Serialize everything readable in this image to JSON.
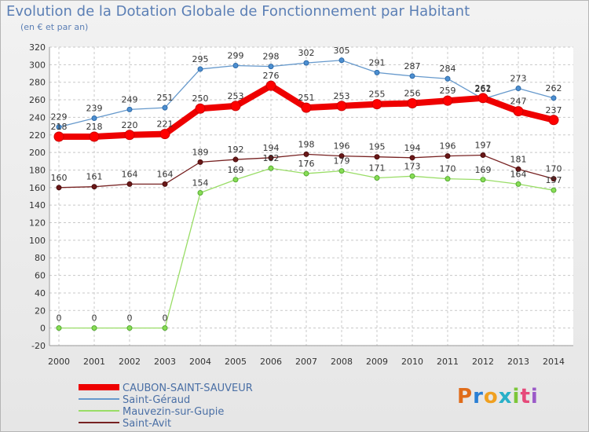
{
  "header": {
    "title": "Evolution de la Dotation Globale de Fonctionnement par Habitant",
    "subtitle": "(en € et par an)"
  },
  "logo": {
    "text": "Proxiti"
  },
  "chart_data": {
    "type": "line",
    "title": "Evolution de la Dotation Globale de Fonctionnement par Habitant",
    "subtitle": "(en € et par an)",
    "x": [
      2000,
      2001,
      2002,
      2003,
      2004,
      2005,
      2006,
      2007,
      2008,
      2009,
      2010,
      2011,
      2012,
      2013,
      2014
    ],
    "ylim": [
      -20,
      320
    ],
    "yticks": [
      -20,
      0,
      20,
      40,
      60,
      80,
      100,
      120,
      140,
      160,
      180,
      200,
      220,
      240,
      260,
      280,
      300,
      320
    ],
    "grid": true,
    "legend_position": "bottom-left",
    "series": [
      {
        "name": "CAUBON-SAINT-SAUVEUR",
        "color": "#ee0000",
        "values": [
          218,
          218,
          220,
          221,
          250,
          253,
          276,
          251,
          253,
          255,
          256,
          259,
          262,
          247,
          237
        ]
      },
      {
        "name": "Saint-Géraud",
        "color": "#6699cc",
        "values": [
          229,
          239,
          249,
          251,
          295,
          299,
          298,
          302,
          305,
          291,
          287,
          284,
          261,
          273,
          262
        ]
      },
      {
        "name": "Mauvezin-sur-Gupie",
        "color": "#99dd66",
        "values": [
          0,
          0,
          0,
          0,
          154,
          169,
          182,
          176,
          179,
          171,
          173,
          170,
          169,
          164,
          157
        ]
      },
      {
        "name": "Saint-Avit",
        "color": "#772222",
        "values": [
          160,
          161,
          164,
          164,
          189,
          192,
          194,
          198,
          196,
          195,
          194,
          196,
          197,
          181,
          170
        ]
      }
    ]
  }
}
